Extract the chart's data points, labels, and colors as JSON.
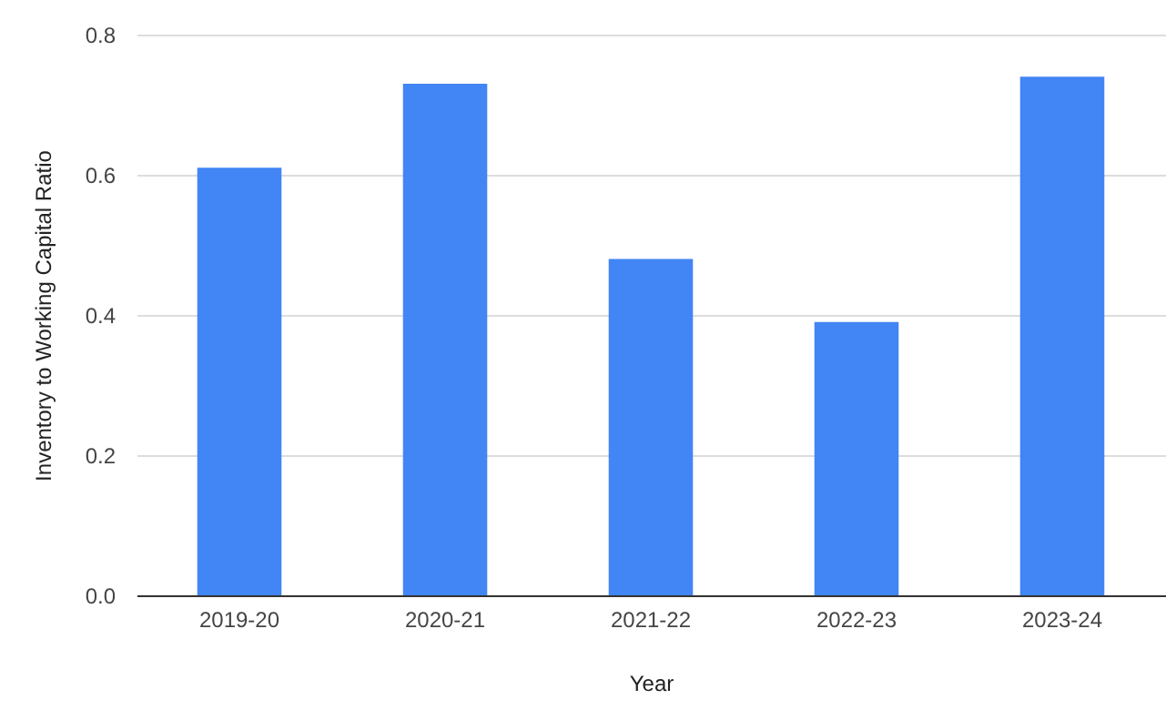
{
  "chart_data": {
    "type": "bar",
    "xlabel": "Year",
    "ylabel": "Inventory to Working Capital Ratio",
    "categories": [
      "2019-20",
      "2020-21",
      "2021-22",
      "2022-23",
      "2023-24"
    ],
    "values": [
      0.61,
      0.73,
      0.48,
      0.39,
      0.74
    ],
    "color": "#4285f4",
    "ylim": [
      0,
      0.8
    ],
    "yticks": [
      {
        "value": 0,
        "label": "0.0"
      },
      {
        "value": 0.2,
        "label": "0.2"
      },
      {
        "value": 0.4,
        "label": "0.4"
      },
      {
        "value": 0.6,
        "label": "0.6"
      },
      {
        "value": 0.8,
        "label": "0.8"
      }
    ],
    "grid": "y"
  }
}
